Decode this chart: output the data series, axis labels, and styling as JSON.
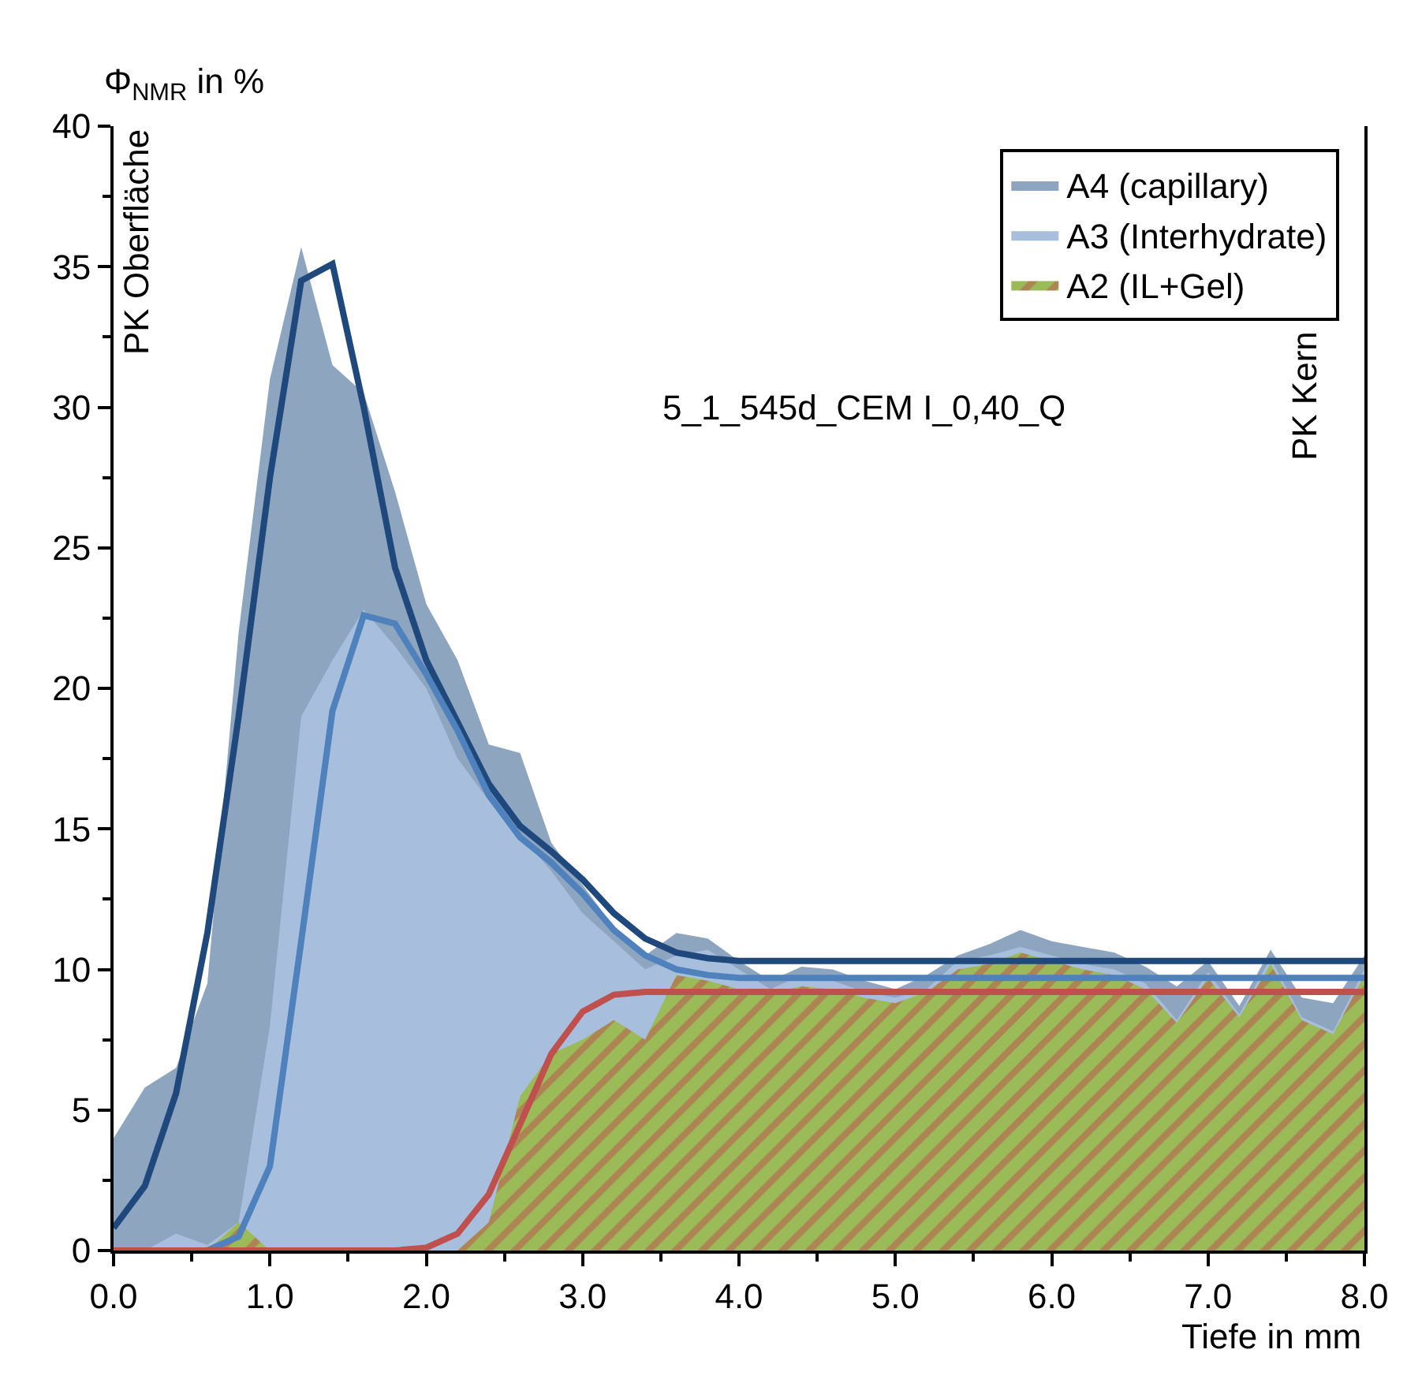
{
  "chart_data": {
    "type": "area",
    "x": [
      0.0,
      0.2,
      0.4,
      0.6,
      0.8,
      1.0,
      1.2,
      1.4,
      1.6,
      1.8,
      2.0,
      2.2,
      2.4,
      2.6,
      2.8,
      3.0,
      3.2,
      3.4,
      3.6,
      3.8,
      4.0,
      4.2,
      4.4,
      4.6,
      4.8,
      5.0,
      5.2,
      5.4,
      5.6,
      5.8,
      6.0,
      6.2,
      6.4,
      6.6,
      6.8,
      7.0,
      7.2,
      7.4,
      7.6,
      7.8,
      8.0
    ],
    "series": [
      {
        "name": "A4 (capillary)",
        "color": "#8ea5c0",
        "values": [
          4,
          5.8,
          6.5,
          9.5,
          22,
          31,
          35.7,
          31.5,
          30.5,
          27,
          23,
          21,
          18,
          17.7,
          14.5,
          13,
          11.5,
          10.5,
          11.3,
          11.1,
          10.3,
          9.6,
          10.1,
          10,
          9.6,
          9.3,
          9.8,
          10.5,
          10.9,
          11.4,
          11,
          10.8,
          10.6,
          10.1,
          9.4,
          10.3,
          8.7,
          10.7,
          9,
          8.8,
          10.5
        ]
      },
      {
        "name": "A3 (Interhydrate)",
        "color": "#a7bfdd",
        "values": [
          0,
          0,
          0.6,
          0.2,
          1,
          8,
          19,
          21,
          22.8,
          21.5,
          20,
          17.5,
          16,
          14.8,
          13.5,
          12,
          11,
          10,
          10.5,
          10.7,
          10,
          9.3,
          9.8,
          9.6,
          9.2,
          9,
          9.3,
          10.3,
          10.5,
          10.8,
          10.5,
          10.2,
          10,
          9.5,
          8.2,
          9.9,
          8.4,
          10.4,
          8.3,
          7.8,
          10
        ]
      },
      {
        "name": "A2 (IL+Gel)",
        "color": "#9bbb59",
        "values": [
          0,
          0,
          0,
          0,
          1,
          0,
          0,
          0,
          0,
          0,
          0,
          0,
          1,
          5.5,
          7,
          7.5,
          8.2,
          7.5,
          9.8,
          9.6,
          9.3,
          9.2,
          9.4,
          9.3,
          9,
          8.8,
          9.2,
          10,
          10.2,
          10.6,
          10.3,
          10,
          9.8,
          9.3,
          8.1,
          9.7,
          8.3,
          10.2,
          8.2,
          7.7,
          9.8
        ]
      },
      {
        "type": "line",
        "color": "#1f497d",
        "values": [
          0.8,
          2.3,
          5.6,
          11.3,
          19,
          27.5,
          34.5,
          35.1,
          30,
          24.3,
          21,
          18.8,
          16.6,
          15.1,
          14.2,
          13.2,
          12,
          11.1,
          10.6,
          10.4,
          10.3,
          10.3,
          10.3,
          10.3,
          10.3,
          10.3,
          10.3,
          10.3,
          10.3,
          10.3,
          10.3,
          10.3,
          10.3,
          10.3,
          10.3,
          10.3,
          10.3,
          10.3,
          10.3,
          10.3,
          10.3
        ]
      },
      {
        "type": "line",
        "color": "#4f81bd",
        "values": [
          0,
          0,
          0,
          0,
          0.5,
          3,
          11,
          19.2,
          22.6,
          22.3,
          20.5,
          18.5,
          16.2,
          14.7,
          13.8,
          12.7,
          11.4,
          10.5,
          10,
          9.8,
          9.7,
          9.7,
          9.7,
          9.7,
          9.7,
          9.7,
          9.7,
          9.7,
          9.7,
          9.7,
          9.7,
          9.7,
          9.7,
          9.7,
          9.7,
          9.7,
          9.7,
          9.7,
          9.7,
          9.7,
          9.7
        ]
      },
      {
        "type": "line",
        "color": "#c0504d",
        "values": [
          0,
          0,
          0,
          0,
          0,
          0,
          0,
          0,
          0,
          0,
          0.1,
          0.6,
          2,
          4.5,
          7,
          8.5,
          9.1,
          9.2,
          9.2,
          9.2,
          9.2,
          9.2,
          9.2,
          9.2,
          9.2,
          9.2,
          9.2,
          9.2,
          9.2,
          9.2,
          9.2,
          9.2,
          9.2,
          9.2,
          9.2,
          9.2,
          9.2,
          9.2,
          9.2,
          9.2,
          9.2
        ]
      }
    ],
    "ylabel": "Φ$_{NMR}$ in %",
    "xlabel": "Tiefe in mm",
    "xlim": [
      0,
      8
    ],
    "xticks": [
      {
        "value": 0,
        "label": "0.0"
      },
      {
        "value": 1,
        "label": "1.0"
      },
      {
        "value": 2,
        "label": "2.0"
      },
      {
        "value": 3,
        "label": "3.0"
      },
      {
        "value": 4,
        "label": "4.0"
      },
      {
        "value": 5,
        "label": "5.0"
      },
      {
        "value": 6,
        "label": "6.0"
      },
      {
        "value": 7,
        "label": "7.0"
      },
      {
        "value": 8,
        "label": "8.0"
      }
    ],
    "ylim": [
      0,
      40
    ],
    "yticks": [
      0,
      5,
      10,
      15,
      20,
      25,
      30,
      35,
      40
    ],
    "annotations": [
      "PK Oberfläche",
      "PK Kern",
      "5_1_545d_CEM I_0,40_Q"
    ],
    "legend": "top right",
    "grid": false,
    "marker": "none",
    "line_style": "solid"
  }
}
